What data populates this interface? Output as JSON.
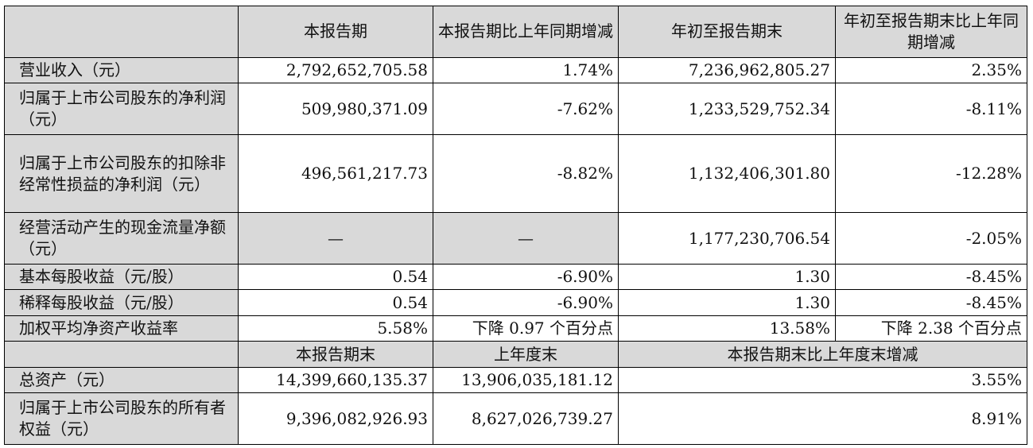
{
  "header": {
    "col1": "本报告期",
    "col2": "本报告期比上年同期增减",
    "col3": "年初至报告期末",
    "col4": "年初至报告期末比上年同期增减"
  },
  "rows": [
    {
      "label": "营业收入（元）",
      "v1": "2,792,652,705.58",
      "v2": "1.74%",
      "v3": "7,236,962,805.27",
      "v4": "2.35%"
    },
    {
      "label": "归属于上市公司股东的净利润（元）",
      "v1": "509,980,371.09",
      "v2": "-7.62%",
      "v3": "1,233,529,752.34",
      "v4": "-8.11%"
    },
    {
      "label": "归属于上市公司股东的扣除非经常性损益的净利润（元）",
      "v1": "496,561,217.73",
      "v2": "-8.82%",
      "v3": "1,132,406,301.80",
      "v4": "-12.28%"
    },
    {
      "label": "经营活动产生的现金流量净额（元）",
      "v1": "—",
      "v2": "—",
      "v3": "1,177,230,706.54",
      "v4": "-2.05%"
    },
    {
      "label": "基本每股收益（元/股）",
      "v1": "0.54",
      "v2": "-6.90%",
      "v3": "1.30",
      "v4": "-8.45%"
    },
    {
      "label": "稀释每股收益（元/股）",
      "v1": "0.54",
      "v2": "-6.90%",
      "v3": "1.30",
      "v4": "-8.45%"
    },
    {
      "label": "加权平均净资产收益率",
      "v1": "5.58%",
      "v2": "下降 0.97 个百分点",
      "v3": "13.58%",
      "v4": "下降 2.38 个百分点"
    }
  ],
  "subheader": {
    "col1": "本报告期末",
    "col2": "上年度末",
    "col3": "本报告期末比上年度末增减"
  },
  "rows2": [
    {
      "label": "总资产（元）",
      "v1": "14,399,660,135.37",
      "v2": "13,906,035,181.12",
      "v3": "3.55%"
    },
    {
      "label": "归属于上市公司股东的所有者权益（元）",
      "v1": "9,396,082,926.93",
      "v2": "8,627,026,739.27",
      "v3": "8.91%"
    }
  ]
}
